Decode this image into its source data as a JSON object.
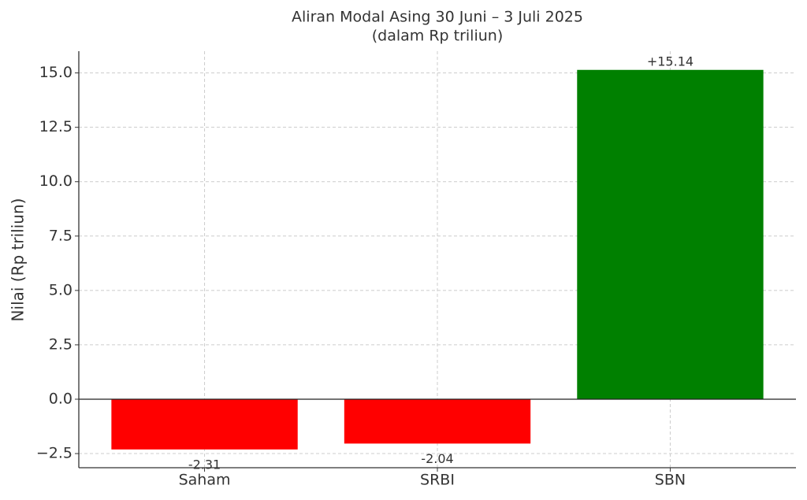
{
  "chart_data": {
    "type": "bar",
    "title": "Aliran Modal Asing 30 Juni – 3 Juli 2025",
    "subtitle": "(dalam Rp triliun)",
    "y_label": "Nilai (Rp triliun)",
    "categories": [
      "Saham",
      "SRBI",
      "SBN"
    ],
    "values": [
      -2.31,
      -2.04,
      15.14
    ],
    "value_labels": [
      "-2.31",
      "-2.04",
      "+15.14"
    ],
    "colors": [
      "#ff0000",
      "#ff0000",
      "#008000"
    ],
    "ylim": [
      -3.15,
      16.0
    ],
    "yticks": [
      {
        "value": -2.5,
        "label": "−2.5"
      },
      {
        "value": 0,
        "label": "0.0"
      },
      {
        "value": 2.5,
        "label": "2.5"
      },
      {
        "value": 5,
        "label": "5.0"
      },
      {
        "value": 7.5,
        "label": "7.5"
      },
      {
        "value": 10,
        "label": "10.0"
      },
      {
        "value": 12.5,
        "label": "12.5"
      },
      {
        "value": 15,
        "label": "15.0"
      }
    ],
    "grid": true
  }
}
